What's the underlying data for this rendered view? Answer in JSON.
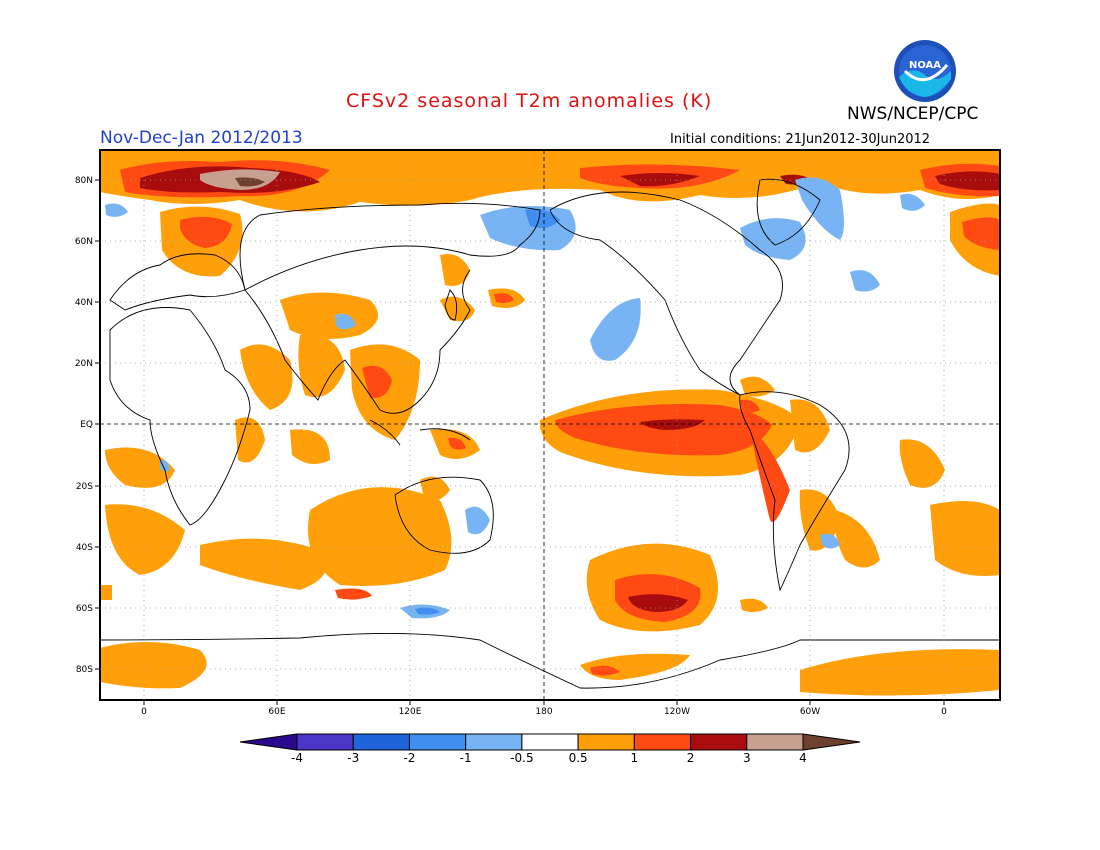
{
  "title": "CFSv2 seasonal T2m anomalies (K)",
  "agency": "NWS/NCEP/CPC",
  "logo_text": "NOAA",
  "period": "Nov-Dec-Jan 2012/2013",
  "initial_conditions": "Initial conditions: 21Jun2012-30Jun2012",
  "map": {
    "lat_labels": [
      "80N",
      "60N",
      "40N",
      "20N",
      "EQ",
      "20S",
      "40S",
      "60S",
      "80S"
    ],
    "lon_labels": [
      "0",
      "60E",
      "120E",
      "180",
      "120W",
      "60W",
      "0"
    ],
    "colorbar": {
      "labels": [
        "-4",
        "-3",
        "-2",
        "-1",
        "-0.5",
        "0.5",
        "1",
        "2",
        "3",
        "4"
      ],
      "colors": [
        "#2a0a8c",
        "#4b36c8",
        "#1f64d8",
        "#3f8ef0",
        "#78b4f4",
        "#ffffff",
        "#ffa00a",
        "#ff4a14",
        "#a80c0c",
        "#c8a090",
        "#6e4030"
      ]
    }
  }
}
